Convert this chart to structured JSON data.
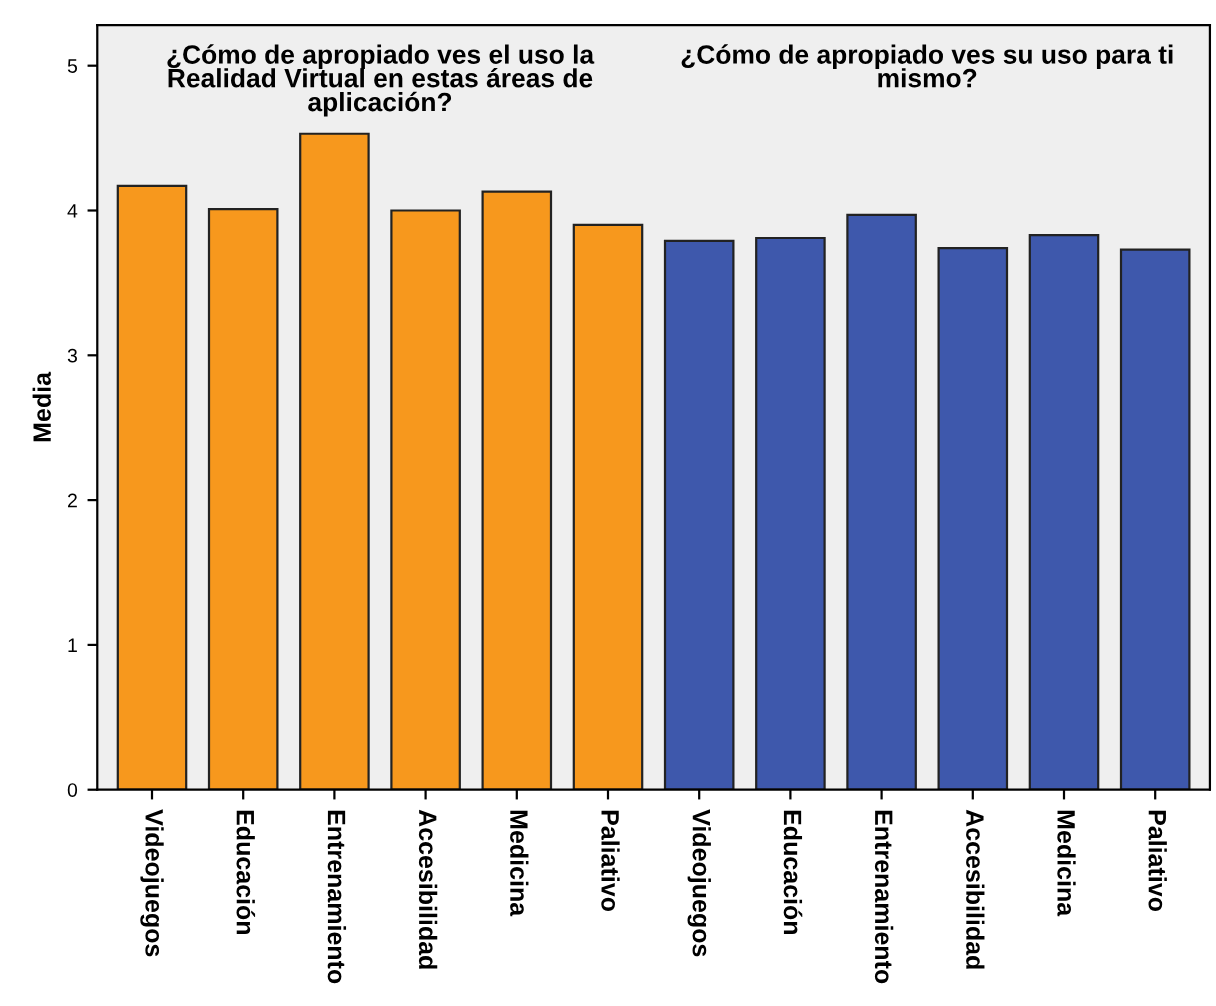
{
  "chart_data": {
    "type": "bar",
    "ylabel": "Media",
    "categories": [
      "Videojuegos",
      "Educación",
      "Entrenamiento",
      "Accesibilidad",
      "Medicina",
      "Paliativo",
      "Videojuegos",
      "Educación",
      "Entrenamiento",
      "Accesibilidad",
      "Medicina",
      "Paliativo"
    ],
    "values": [
      4.17,
      4.01,
      4.53,
      4.0,
      4.13,
      3.9,
      3.79,
      3.81,
      3.97,
      3.74,
      3.83,
      3.73
    ],
    "colors": [
      "#f7981d",
      "#f7981d",
      "#f7981d",
      "#f7981d",
      "#f7981d",
      "#f7981d",
      "#3e58ac",
      "#3e58ac",
      "#3e58ac",
      "#3e58ac",
      "#3e58ac",
      "#3e58ac"
    ],
    "ylim": [
      0,
      5.28
    ],
    "yticks": [
      0,
      1,
      2,
      3,
      4,
      5
    ],
    "grid": false,
    "legend": false,
    "annotations": [
      "¿Cómo de apropiado ves el uso la Realidad Virtual en estas áreas de aplicación?",
      "¿Cómo de apropiado ves su uso para ti mismo?"
    ]
  }
}
